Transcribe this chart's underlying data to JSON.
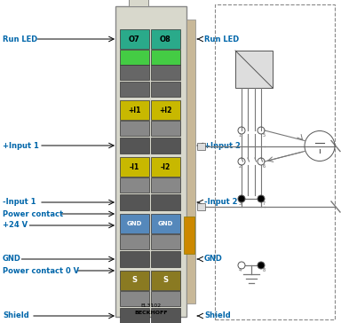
{
  "bg_color": "#ffffff",
  "teal_color": "#2aaa8a",
  "yellow_color": "#c8b800",
  "blue_color": "#5588bb",
  "olive_color": "#8a7a22",
  "green_led": "#44cc44",
  "module_bg": "#d8d8cc",
  "connector_strip": "#c8b898",
  "orange_contact": "#cc8800",
  "dark_connector": "#555555",
  "mid_connector": "#888888",
  "gray_connector": "#666666",
  "label_color": "#0066aa",
  "circuit_gray": "#777777",
  "left_labels": [
    {
      "text": "Run LED",
      "row": 0
    },
    {
      "text": "+Input 1",
      "row": 1
    },
    {
      "text": "-Input 1",
      "row": 2
    },
    {
      "text": "Power contact",
      "row": 3
    },
    {
      "text": "+24 V",
      "row": 4
    },
    {
      "text": "GND",
      "row": 5
    },
    {
      "text": "Power contact 0 V",
      "row": 6
    },
    {
      "text": "Shield",
      "row": 7
    }
  ],
  "right_labels": [
    {
      "text": "Run LED",
      "row": 0
    },
    {
      "text": "+Input 2",
      "row": 1
    },
    {
      "text": "-Input 2",
      "row": 2
    },
    {
      "text": "GND",
      "row": 3
    },
    {
      "text": "Shield",
      "row": 4
    }
  ]
}
